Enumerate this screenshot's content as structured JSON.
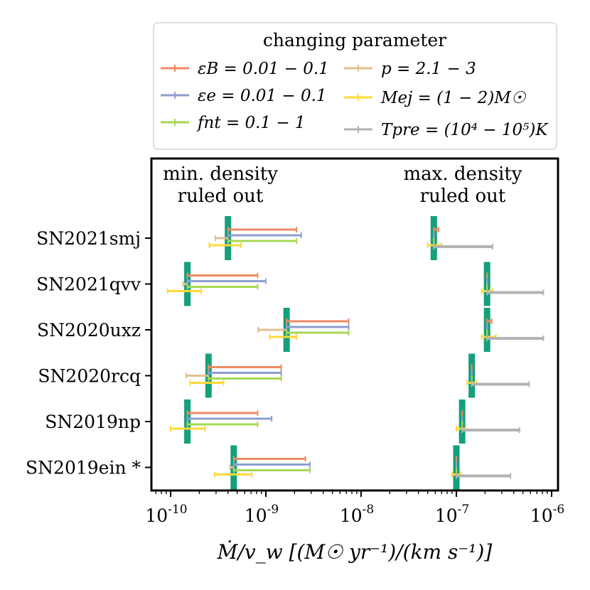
{
  "chart_data": {
    "type": "range-errorbar",
    "x_scale": "log",
    "xlim": [
      6e-11,
      1.3e-06
    ],
    "xlabel": "Ṁ/v_w  [(M☉ yr⁻¹)/(km s⁻¹)]",
    "x_ticks": [
      {
        "value": 1e-10,
        "label": "10-10"
      },
      {
        "value": 1e-09,
        "label": "10-9"
      },
      {
        "value": 1e-08,
        "label": "10-8"
      },
      {
        "value": 1e-07,
        "label": "10-7"
      },
      {
        "value": 1e-06,
        "label": "10-6"
      }
    ],
    "annotations": {
      "min_density": [
        "min. density",
        "ruled out"
      ],
      "max_density": [
        "max. density",
        "ruled out"
      ]
    },
    "legend": {
      "title": "changing parameter",
      "placement": "top",
      "entries": [
        {
          "key": "epsB",
          "label": "εB = 0.01 − 0.1",
          "color": "#f08a63"
        },
        {
          "key": "p",
          "label": "p = 2.1 − 3",
          "color": "#e0c08f"
        },
        {
          "key": "epse",
          "label": "εe = 0.01 − 0.1",
          "color": "#8f9ed0"
        },
        {
          "key": "Mej",
          "label": "Mej = (1 − 2)M☉",
          "color": "#ffd83a"
        },
        {
          "key": "fnt",
          "label": "fnt = 0.1 − 1",
          "color": "#a6d854"
        },
        {
          "key": "Tpre",
          "label": "Tpre = (10⁴ − 10⁵)K",
          "color": "#b3b3b3"
        }
      ]
    },
    "baseline_color": "#14a07a",
    "supernovae": [
      {
        "name": "SN2021smj",
        "min_base": 4e-10,
        "max_base": 5.8e-08,
        "min_ranges": {
          "epsB": [
            4e-10,
            2.1e-09
          ],
          "epse": [
            4e-10,
            2.35e-09
          ],
          "fnt": [
            4e-10,
            2.1e-09
          ],
          "p": [
            2.95e-10,
            4e-10
          ],
          "Mej": [
            2.55e-10,
            5.5e-10
          ]
        },
        "max_ranges": {
          "epsB": [
            5.8e-08,
            6.5e-08
          ],
          "epse": [
            5.8e-08,
            5.8e-08
          ],
          "fnt": [
            5.8e-08,
            5.8e-08
          ],
          "p": [
            5.8e-08,
            5.8e-08
          ],
          "Mej": [
            5e-08,
            7e-08
          ],
          "Tpre": [
            5.8e-08,
            2.4e-07
          ]
        }
      },
      {
        "name": "SN2021qvv",
        "min_base": 1.5e-10,
        "max_base": 2.1e-07,
        "min_ranges": {
          "epsB": [
            1.5e-10,
            8.2e-10
          ],
          "epse": [
            1.5e-10,
            1e-09
          ],
          "fnt": [
            1.5e-10,
            8.2e-10
          ],
          "p": [
            1.35e-10,
            1.5e-10
          ],
          "Mej": [
            9.3e-11,
            2.1e-10
          ]
        },
        "max_ranges": {
          "epsB": [
            2.1e-07,
            2.1e-07
          ],
          "epse": [
            2.1e-07,
            2.1e-07
          ],
          "fnt": [
            2.1e-07,
            2.1e-07
          ],
          "p": [
            2.1e-07,
            2.1e-07
          ],
          "Mej": [
            1.85e-07,
            2.4e-07
          ],
          "Tpre": [
            2.1e-07,
            8.2e-07
          ]
        }
      },
      {
        "name": "SN2020uxz",
        "min_base": 1.65e-09,
        "max_base": 2.1e-07,
        "min_ranges": {
          "epsB": [
            1.65e-09,
            7.4e-09
          ],
          "epse": [
            1.65e-09,
            7.4e-09
          ],
          "fnt": [
            1.65e-09,
            7.4e-09
          ],
          "p": [
            8.3e-10,
            1.65e-09
          ],
          "Mej": [
            1.1e-09,
            2.1e-09
          ]
        },
        "max_ranges": {
          "epsB": [
            2.1e-07,
            2.35e-07
          ],
          "epse": [
            2.1e-07,
            2.1e-07
          ],
          "fnt": [
            2.1e-07,
            2.1e-07
          ],
          "p": [
            2.1e-07,
            2.1e-07
          ],
          "Mej": [
            1.85e-07,
            2.6e-07
          ],
          "Tpre": [
            2.1e-07,
            8.2e-07
          ]
        }
      },
      {
        "name": "SN2020rcq",
        "min_base": 2.5e-10,
        "max_base": 1.45e-07,
        "min_ranges": {
          "epsB": [
            2.5e-10,
            1.45e-09
          ],
          "epse": [
            2.5e-10,
            1.45e-09
          ],
          "fnt": [
            2.5e-10,
            1.45e-09
          ],
          "p": [
            1.45e-10,
            2.5e-10
          ],
          "Mej": [
            1.6e-10,
            3.6e-10
          ]
        },
        "max_ranges": {
          "epsB": [
            1.45e-07,
            1.45e-07
          ],
          "epse": [
            1.45e-07,
            1.45e-07
          ],
          "fnt": [
            1.45e-07,
            1.45e-07
          ],
          "p": [
            1.45e-07,
            1.45e-07
          ],
          "Mej": [
            1.3e-07,
            1.65e-07
          ],
          "Tpre": [
            1.45e-07,
            5.8e-07
          ]
        }
      },
      {
        "name": "SN2019np",
        "min_base": 1.5e-10,
        "max_base": 1.15e-07,
        "min_ranges": {
          "epsB": [
            1.5e-10,
            8.2e-10
          ],
          "epse": [
            1.5e-10,
            1.15e-09
          ],
          "fnt": [
            1.5e-10,
            8.2e-10
          ],
          "p": [
            1.5e-10,
            1.5e-10
          ],
          "Mej": [
            1e-10,
            2.3e-10
          ]
        },
        "max_ranges": {
          "epsB": [
            1.15e-07,
            1.15e-07
          ],
          "epse": [
            1.15e-07,
            1.15e-07
          ],
          "fnt": [
            1.15e-07,
            1.15e-07
          ],
          "p": [
            1.15e-07,
            1.15e-07
          ],
          "Mej": [
            1e-07,
            1.25e-07
          ],
          "Tpre": [
            1.15e-07,
            4.6e-07
          ]
        }
      },
      {
        "name": "SN2019ein *",
        "min_base": 4.6e-10,
        "max_base": 1e-07,
        "min_ranges": {
          "epsB": [
            4.6e-10,
            2.6e-09
          ],
          "epse": [
            4.6e-10,
            2.9e-09
          ],
          "fnt": [
            4.6e-10,
            2.9e-09
          ],
          "p": [
            4.2e-10,
            4.6e-10
          ],
          "Mej": [
            2.9e-10,
            7.1e-10
          ]
        },
        "max_ranges": {
          "epsB": [
            1e-07,
            1e-07
          ],
          "epse": [
            1e-07,
            1e-07
          ],
          "fnt": [
            1e-07,
            1e-07
          ],
          "p": [
            1e-07,
            1e-07
          ],
          "Mej": [
            9e-08,
            1.12e-07
          ],
          "Tpre": [
            1e-07,
            3.7e-07
          ]
        }
      }
    ]
  }
}
